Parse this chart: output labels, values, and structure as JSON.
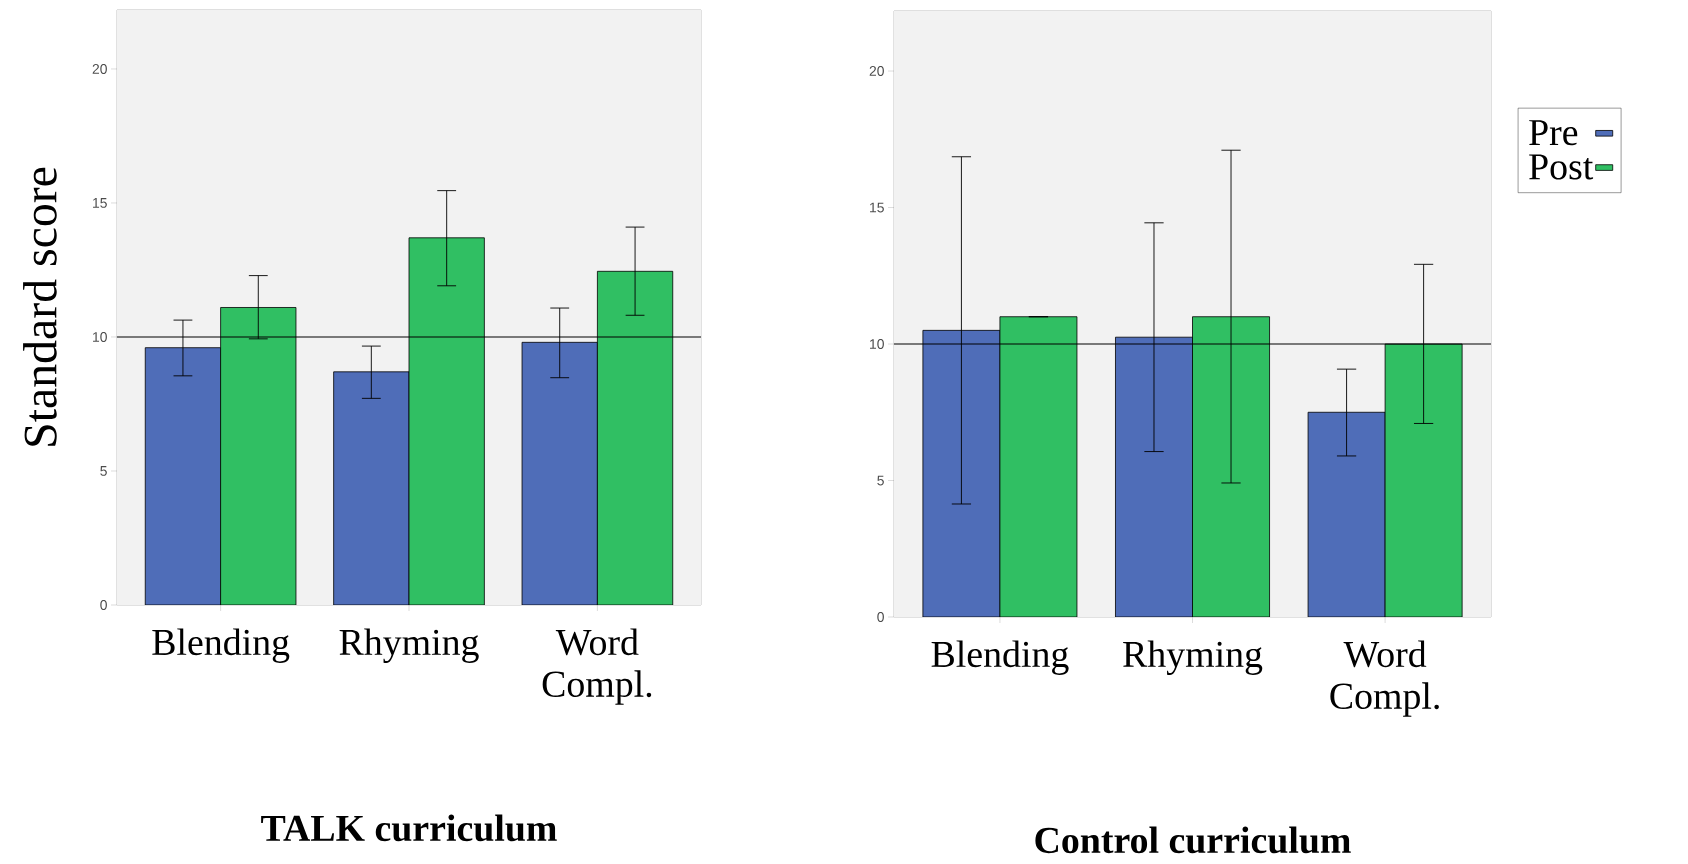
{
  "chart_data": [
    {
      "type": "bar",
      "title": "TALK curriculum",
      "ylabel": "Standard score",
      "categories": [
        "Blending",
        "Rhyming",
        "Word Compl."
      ],
      "series": [
        {
          "color": "#4f6db8",
          "values": [
            9.6,
            8.7,
            9.8
          ],
          "errors": [
            [
              8.55,
              10.63
            ],
            [
              7.71,
              9.66
            ],
            [
              8.48,
              11.08
            ]
          ]
        },
        {
          "color": "#30bf63",
          "values": [
            11.1,
            13.7,
            12.45
          ],
          "errors": [
            [
              9.93,
              12.29
            ],
            [
              11.91,
              15.46
            ],
            [
              10.81,
              14.1
            ]
          ]
        }
      ],
      "ylim": [
        0,
        22.2
      ],
      "yticks": [
        0,
        5,
        10,
        15,
        20
      ],
      "ref_lines": [
        {
          "axis": "y",
          "value": 10
        }
      ],
      "legend": false
    },
    {
      "type": "bar",
      "title": "Control curriculum",
      "categories": [
        "Blending",
        "Rhyming",
        "Word Compl."
      ],
      "series": [
        {
          "name": "Pre",
          "color": "#4f6db8",
          "values": [
            10.5,
            10.25,
            7.5
          ],
          "errors": [
            [
              4.14,
              16.86
            ],
            [
              6.06,
              14.44
            ],
            [
              5.9,
              9.08
            ]
          ]
        },
        {
          "name": "Post",
          "color": "#30bf63",
          "values": [
            11.0,
            11.0,
            10.0
          ],
          "errors": [
            [
              11.0,
              11.0
            ],
            [
              4.91,
              17.1
            ],
            [
              7.09,
              12.92
            ]
          ]
        }
      ],
      "ylim": [
        0,
        22.2
      ],
      "yticks": [
        0,
        5,
        10,
        15,
        20
      ],
      "ref_lines": [
        {
          "axis": "y",
          "value": 10
        }
      ],
      "legend": "right"
    }
  ]
}
